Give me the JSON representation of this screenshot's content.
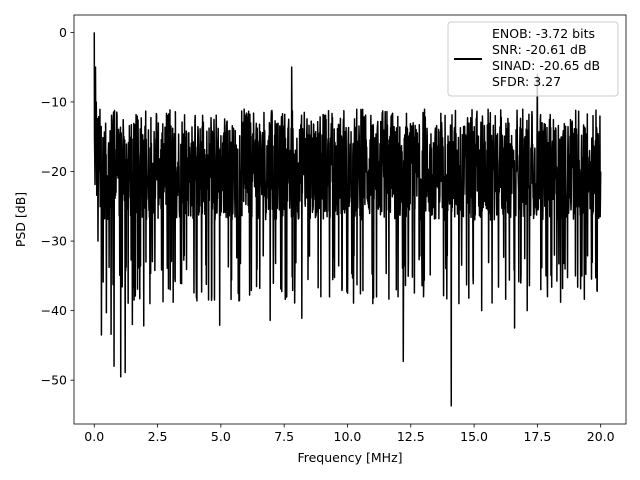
{
  "chart_data": {
    "type": "line",
    "title": "",
    "xlabel": "Frequency [MHz]",
    "ylabel": "PSD [dB]",
    "xlim": [
      -0.8,
      21.0
    ],
    "ylim": [
      -56.3,
      2.5
    ],
    "xticks": [
      0.0,
      2.5,
      5.0,
      7.5,
      10.0,
      12.5,
      15.0,
      17.5,
      20.0
    ],
    "xtick_labels": [
      "0.0",
      "2.5",
      "5.0",
      "7.5",
      "10.0",
      "12.5",
      "15.0",
      "17.5",
      "20.0"
    ],
    "yticks": [
      0,
      -10,
      -20,
      -30,
      -40,
      -50
    ],
    "ytick_labels": [
      "0",
      "−10",
      "−20",
      "−30",
      "−40",
      "−50"
    ],
    "grid": true,
    "legend_position": "top-right",
    "series": [
      {
        "name": "ENOB: -3.72 bits\nSNR: -20.61 dB\nSINAD: -20.65 dB\nSFDR: 3.27",
        "color": "#000000",
        "spectrum_summary": {
          "x_range": [
            0.0,
            20.0
          ],
          "dc_peak": {
            "x": 0.0,
            "y": 0.0
          },
          "typical_upper": -13.0,
          "typical_lower": -27.0,
          "notable_points": [
            {
              "x": 0.02,
              "y": -18.0
            },
            {
              "x": 0.05,
              "y": -5.0
            },
            {
              "x": 0.08,
              "y": -10.0
            },
            {
              "x": 0.15,
              "y": -30.0
            },
            {
              "x": 0.28,
              "y": -43.5
            },
            {
              "x": 0.48,
              "y": -40.3
            },
            {
              "x": 0.66,
              "y": -43.4
            },
            {
              "x": 0.78,
              "y": -48.0
            },
            {
              "x": 1.05,
              "y": -49.5
            },
            {
              "x": 1.22,
              "y": -48.9
            },
            {
              "x": 1.5,
              "y": -42.0
            },
            {
              "x": 1.95,
              "y": -42.2
            },
            {
              "x": 2.2,
              "y": -39.0
            },
            {
              "x": 3.0,
              "y": -37.0
            },
            {
              "x": 4.05,
              "y": -38.6
            },
            {
              "x": 4.95,
              "y": -42.1
            },
            {
              "x": 5.7,
              "y": -37.0
            },
            {
              "x": 6.95,
              "y": -41.4
            },
            {
              "x": 7.6,
              "y": -38.0
            },
            {
              "x": 7.8,
              "y": -5.0
            },
            {
              "x": 8.2,
              "y": -41.1
            },
            {
              "x": 8.95,
              "y": -38.0
            },
            {
              "x": 10.0,
              "y": -37.5
            },
            {
              "x": 11.0,
              "y": -39.0
            },
            {
              "x": 12.0,
              "y": -38.0
            },
            {
              "x": 12.2,
              "y": -47.3
            },
            {
              "x": 13.0,
              "y": -38.0
            },
            {
              "x": 14.1,
              "y": -53.7
            },
            {
              "x": 14.4,
              "y": -39.0
            },
            {
              "x": 15.3,
              "y": -40.0
            },
            {
              "x": 16.6,
              "y": -42.5
            },
            {
              "x": 17.1,
              "y": -40.0
            },
            {
              "x": 17.5,
              "y": -6.0
            },
            {
              "x": 17.9,
              "y": -38.0
            },
            {
              "x": 18.4,
              "y": -20.0
            },
            {
              "x": 19.0,
              "y": -35.0
            },
            {
              "x": 19.85,
              "y": -37.1
            },
            {
              "x": 20.0,
              "y": -20.0
            }
          ]
        }
      }
    ],
    "legend_lines": [
      "ENOB: -3.72 bits",
      "SNR: -20.61 dB",
      "SINAD: -20.65 dB",
      "SFDR: 3.27"
    ]
  }
}
